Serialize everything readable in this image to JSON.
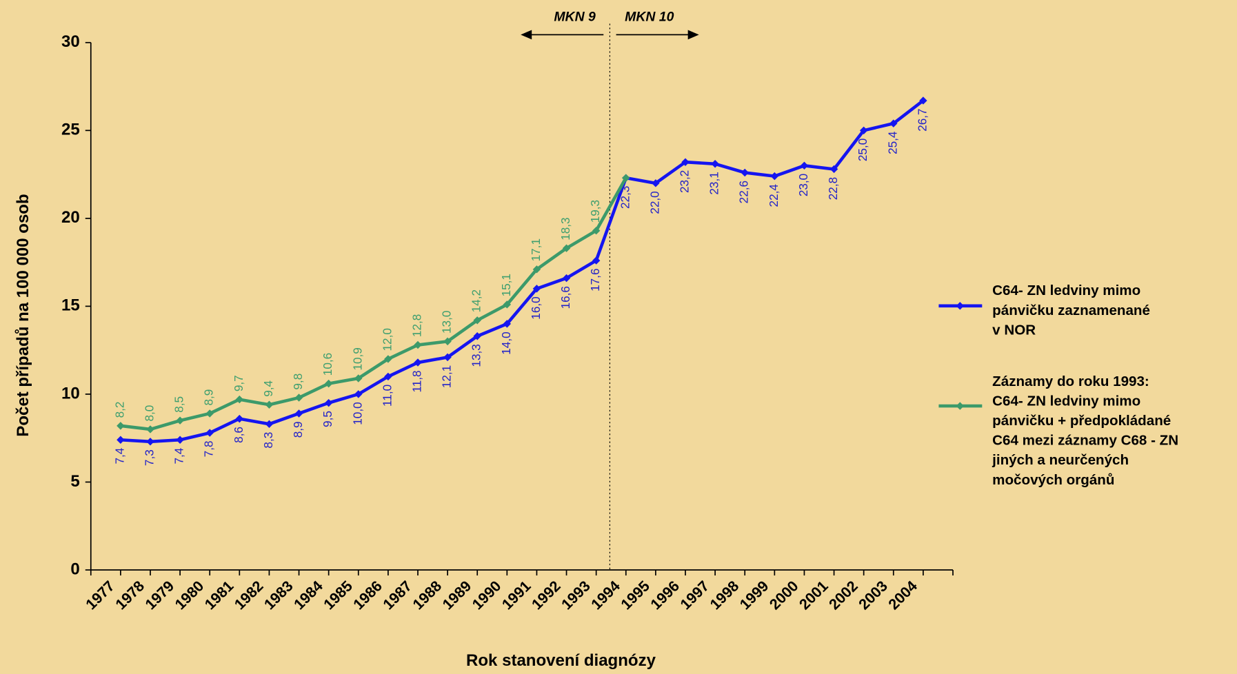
{
  "chart_data": {
    "type": "line",
    "x_label": "Rok stanovení diagnózy",
    "y_label": "Počet případů na 100 000 osob",
    "annotations": [
      "MKN 9",
      "MKN 10"
    ],
    "categories": [
      "1977",
      "1978",
      "1979",
      "1980",
      "1981",
      "1982",
      "1983",
      "1984",
      "1985",
      "1986",
      "1987",
      "1988",
      "1989",
      "1990",
      "1991",
      "1992",
      "1993",
      "1994",
      "1995",
      "1996",
      "1997",
      "1998",
      "1999",
      "2000",
      "2001",
      "2002",
      "2003",
      "2004"
    ],
    "ylim": [
      0,
      30
    ],
    "yticks": [
      0,
      5,
      10,
      15,
      20,
      25,
      30
    ],
    "legend": "right",
    "series": [
      {
        "name": "C64- ZN ledviny mimo\npánvičku zaznamenané\nv NOR",
        "color": "#1515f0",
        "label_color": "#2323c8",
        "label_position": "below",
        "values": [
          7.4,
          7.3,
          7.4,
          7.8,
          8.6,
          8.3,
          8.9,
          9.5,
          10.0,
          11.0,
          11.8,
          12.1,
          13.3,
          14.0,
          16.0,
          16.6,
          17.6,
          22.3,
          22.0,
          23.2,
          23.1,
          22.6,
          22.4,
          23.0,
          22.8,
          25.0,
          25.4,
          26.7
        ],
        "value_labels": [
          "7,4",
          "7,3",
          "7,4",
          "7,8",
          "8,6",
          "8,3",
          "8,9",
          "9,5",
          "10,0",
          "11,0",
          "11,8",
          "12,1",
          "13,3",
          "14,0",
          "16,0",
          "16,6",
          "17,6",
          "22,3",
          "22,0",
          "23,2",
          "23,1",
          "22,6",
          "22,4",
          "23,0",
          "22,8",
          "25,0",
          "25,4",
          "26,7"
        ]
      },
      {
        "name": "Záznamy do roku 1993:\nC64- ZN ledviny mimo\npánvičku + předpokládané\nC64 mezi záznamy C68 - ZN\njiných a neurčených\nmočových orgánů",
        "color": "#3c9a6a",
        "label_color": "#3f9f6f",
        "label_position": "above",
        "values": [
          8.2,
          8.0,
          8.5,
          8.9,
          9.7,
          9.4,
          9.8,
          10.6,
          10.9,
          12.0,
          12.8,
          13.0,
          14.2,
          15.1,
          17.1,
          18.3,
          19.3,
          22.3,
          null,
          null,
          null,
          null,
          null,
          null,
          null,
          null,
          null,
          null
        ],
        "value_labels": [
          "8,2",
          "8,0",
          "8,5",
          "8,9",
          "9,7",
          "9,4",
          "9,8",
          "10,6",
          "10,9",
          "12,0",
          "12,8",
          "13,0",
          "14,2",
          "15,1",
          "17,1",
          "18,3",
          "19,3",
          null,
          null,
          null,
          null,
          null,
          null,
          null,
          null,
          null,
          null,
          null
        ]
      }
    ]
  }
}
